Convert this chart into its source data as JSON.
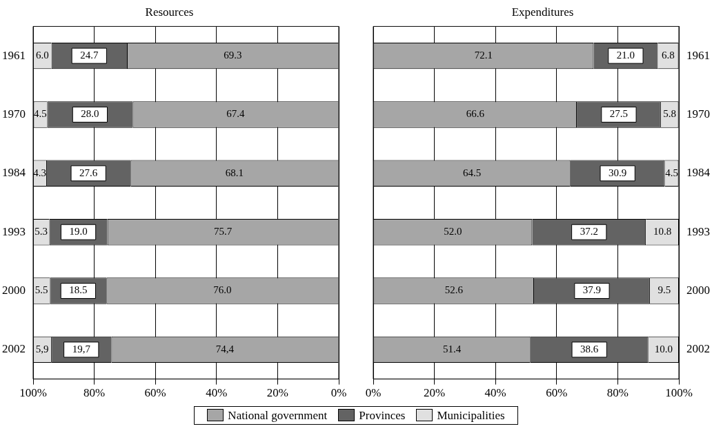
{
  "chart_data": [
    {
      "type": "bar",
      "title": "Resources",
      "orientation": "horizontal",
      "stacked": true,
      "categories": [
        "1961",
        "1970",
        "1984",
        "1993",
        "2000",
        "2002"
      ],
      "xlim": [
        100,
        0
      ],
      "xticks": [
        {
          "value": 100,
          "label": "100%"
        },
        {
          "value": 80,
          "label": "80%"
        },
        {
          "value": 60,
          "label": "60%"
        },
        {
          "value": 40,
          "label": "40%"
        },
        {
          "value": 20,
          "label": "20%"
        },
        {
          "value": 0,
          "label": "0%"
        }
      ],
      "grid": "x",
      "legend": "bottom",
      "series": [
        {
          "name": "National government",
          "color": "#a6a6a6",
          "values": [
            69.3,
            67.4,
            68.1,
            75.7,
            76.0,
            74.4
          ],
          "value_labels": [
            "69.3",
            "67.4",
            "68.1",
            "75.7",
            "76.0",
            "74,4"
          ]
        },
        {
          "name": "Provinces",
          "color": "#636363",
          "values": [
            24.7,
            28.0,
            27.6,
            19.0,
            18.5,
            19.7
          ],
          "value_labels": [
            "24.7",
            "28.0",
            "27.6",
            "19.0",
            "18.5",
            "19,7"
          ]
        },
        {
          "name": "Municipalities",
          "color": "#e0e0e0",
          "values": [
            6.0,
            4.5,
            4.3,
            5.3,
            5.5,
            5.9
          ],
          "value_labels": [
            "6.0",
            "4.5",
            "4.3",
            "5.3",
            "5.5",
            "5,9"
          ]
        }
      ]
    },
    {
      "type": "bar",
      "title": "Expenditures",
      "orientation": "horizontal",
      "stacked": true,
      "categories": [
        "1961",
        "1970",
        "1984",
        "1993",
        "2000",
        "2002"
      ],
      "xlim": [
        0,
        100
      ],
      "xticks": [
        {
          "value": 0,
          "label": "0%"
        },
        {
          "value": 20,
          "label": "20%"
        },
        {
          "value": 40,
          "label": "40%"
        },
        {
          "value": 60,
          "label": "60%"
        },
        {
          "value": 80,
          "label": "80%"
        },
        {
          "value": 100,
          "label": "100%"
        }
      ],
      "grid": "x",
      "legend": "bottom",
      "series": [
        {
          "name": "National government",
          "color": "#a6a6a6",
          "values": [
            72.1,
            66.6,
            64.5,
            52.0,
            52.6,
            51.4
          ],
          "value_labels": [
            "72.1",
            "66.6",
            "64.5",
            "52.0",
            "52.6",
            "51.4"
          ]
        },
        {
          "name": "Provinces",
          "color": "#636363",
          "values": [
            21.0,
            27.5,
            30.9,
            37.2,
            37.9,
            38.6
          ],
          "value_labels": [
            "21.0",
            "27.5",
            "30.9",
            "37.2",
            "37.9",
            "38.6"
          ]
        },
        {
          "name": "Municipalities",
          "color": "#e0e0e0",
          "values": [
            6.8,
            5.8,
            4.5,
            10.8,
            9.5,
            10.0
          ],
          "value_labels": [
            "6.8",
            "5.8",
            "4.5",
            "10.8",
            "9.5",
            "10.0"
          ]
        }
      ]
    }
  ]
}
